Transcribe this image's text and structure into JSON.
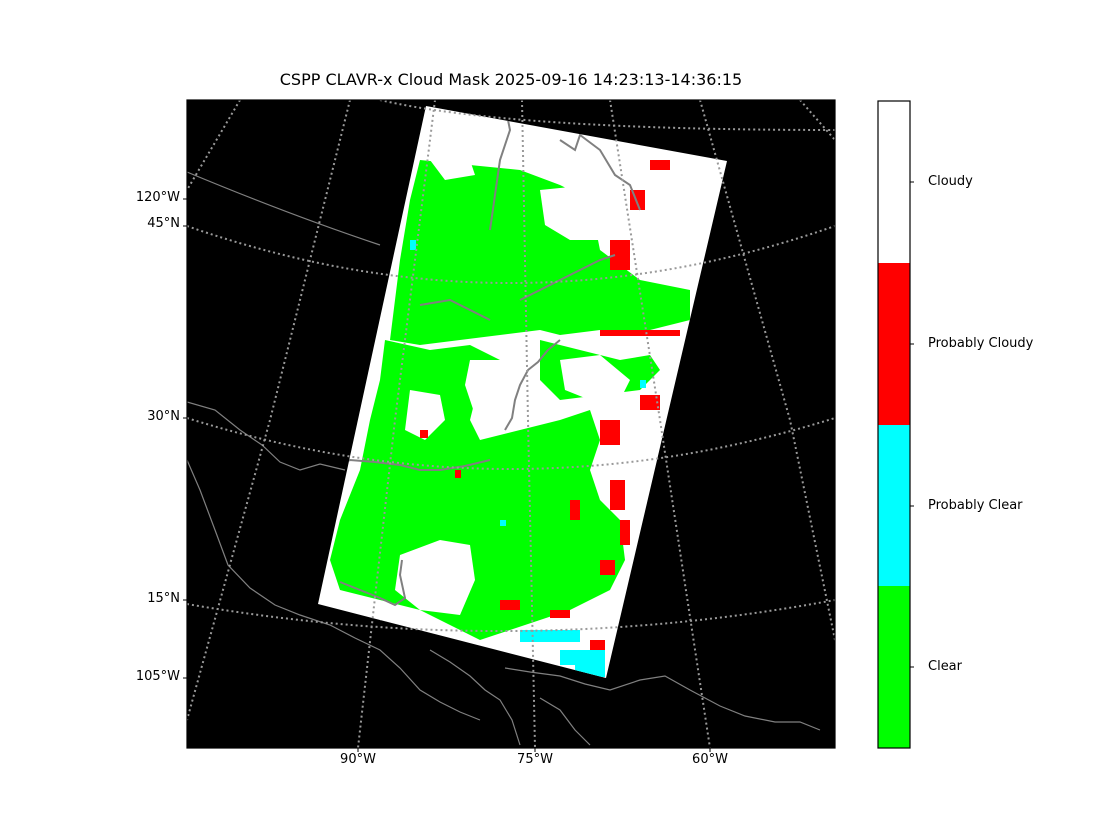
{
  "title": "CSPP CLAVR-x Cloud Mask 2025-09-16 14:23:13-14:36:15",
  "map": {
    "background_color": "#000000",
    "grid_color": "#999999",
    "coastline_color": "#808080",
    "lat_labels": [
      "45°N",
      "30°N",
      "15°N"
    ],
    "lon_labels_left": [
      "120°W",
      "105°W"
    ],
    "lon_labels_bottom": [
      "90°W",
      "75°W",
      "60°W"
    ]
  },
  "legend": {
    "classes": [
      {
        "label": "Cloudy",
        "color": "#ffffff"
      },
      {
        "label": "Probably Cloudy",
        "color": "#ff0000"
      },
      {
        "label": "Probably Clear",
        "color": "#00ffff"
      },
      {
        "label": "Clear",
        "color": "#00ff00"
      }
    ]
  }
}
